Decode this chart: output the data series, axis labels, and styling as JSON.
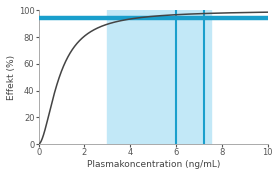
{
  "title": "",
  "xlabel": "Plasmakoncentration (ng/mL)",
  "ylabel": "Effekt (%)",
  "xlim": [
    0,
    10
  ],
  "ylim": [
    0,
    100
  ],
  "yticks": [
    0,
    20,
    40,
    60,
    80,
    100
  ],
  "xticks": [
    0,
    2,
    4,
    6,
    8,
    10
  ],
  "curve_color": "#444444",
  "hline_value": 94,
  "hline_color": "#1a9fcc",
  "hline_lw": 3.2,
  "shade_xmin": 3.0,
  "shade_xmax": 7.5,
  "shade_color": "#c2e8f7",
  "vline1": 6.0,
  "vline2": 7.2,
  "vline_color": "#1a9fcc",
  "vline_lw": 1.5,
  "emax": 100,
  "ec50": 0.9,
  "hill": 1.8,
  "bg_color": "#ffffff",
  "label_fontsize": 6.5,
  "tick_fontsize": 6.0,
  "spine_color": "#aaaaaa"
}
